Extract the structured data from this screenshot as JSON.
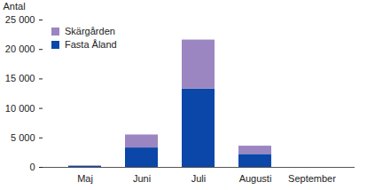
{
  "chart_data": {
    "type": "bar",
    "stacked": true,
    "y_label": "Antal",
    "categories": [
      "Maj",
      "Juni",
      "Juli",
      "Augusti",
      "September"
    ],
    "series": [
      {
        "name": "Fasta Åland",
        "color": "#0a47a8",
        "values": [
          200,
          3300,
          13300,
          2200,
          0
        ]
      },
      {
        "name": "Skärgården",
        "color": "#9b86c2",
        "values": [
          50,
          2200,
          8300,
          1400,
          0
        ]
      }
    ],
    "ylim": [
      0,
      25000
    ],
    "yticks": [
      0,
      {
        "value": 5000,
        "label": "5 000"
      },
      {
        "value": 10000,
        "label": "10 000"
      },
      {
        "value": 15000,
        "label": "15 000"
      },
      {
        "value": 20000,
        "label": "20 000"
      },
      {
        "value": 25000,
        "label": "25 000"
      }
    ],
    "legend": "top-left",
    "grid": false
  }
}
